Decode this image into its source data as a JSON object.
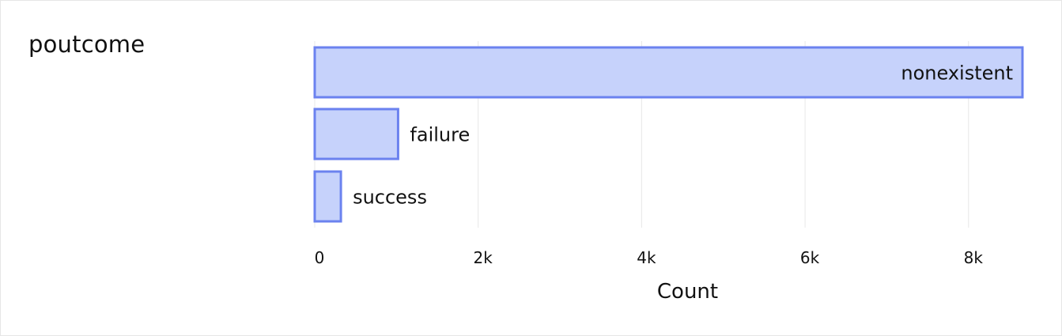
{
  "feature": {
    "name": "poutcome"
  },
  "chart_data": {
    "type": "bar",
    "orientation": "horizontal",
    "categories": [
      "nonexistent",
      "failure",
      "success"
    ],
    "values": [
      8660,
      1020,
      320
    ],
    "xlabel": "Count",
    "ylabel": "",
    "xlim": [
      0,
      8660
    ],
    "x_ticks": [
      0,
      2000,
      4000,
      6000,
      8000
    ],
    "x_tick_labels": [
      "0",
      "2k",
      "4k",
      "6k",
      "8k"
    ],
    "grid": true,
    "colors": {
      "bar_fill": "#c6d2fb",
      "bar_stroke": "#6b82ef"
    }
  }
}
